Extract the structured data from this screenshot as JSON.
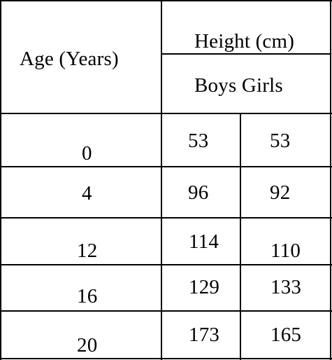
{
  "table": {
    "header": {
      "age_label": "Age (Years)",
      "height_label": "Height (cm)",
      "sub_labels": "Boys Girls"
    },
    "rows": [
      {
        "age": "0",
        "boys": "53",
        "girls": "53"
      },
      {
        "age": "4",
        "boys": "96",
        "girls": "92"
      },
      {
        "age": "12",
        "boys": "114",
        "girls": "110"
      },
      {
        "age": "16",
        "boys": "129",
        "girls": "133"
      },
      {
        "age": "20",
        "boys": "173",
        "girls": "165"
      }
    ]
  }
}
